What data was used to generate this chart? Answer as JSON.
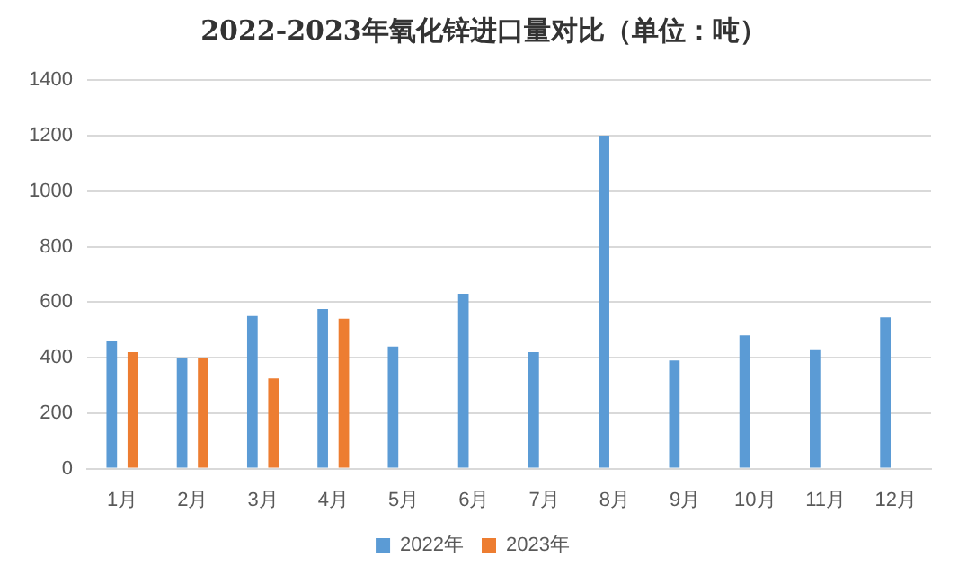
{
  "chart_data": {
    "type": "bar",
    "title": "2022-2023年氧化锌进口量对比（单位：吨）",
    "categories": [
      "1月",
      "2月",
      "3月",
      "4月",
      "5月",
      "6月",
      "7月",
      "8月",
      "9月",
      "10月",
      "11月",
      "12月"
    ],
    "series": [
      {
        "name": "2022年",
        "color": "#5b9bd5",
        "values": [
          460,
          400,
          550,
          575,
          440,
          630,
          420,
          1200,
          390,
          480,
          430,
          545
        ]
      },
      {
        "name": "2023年",
        "color": "#ed7d31",
        "values": [
          420,
          400,
          325,
          540,
          null,
          null,
          null,
          null,
          null,
          null,
          null,
          null
        ]
      }
    ],
    "ylim": [
      0,
      1400
    ],
    "yticks": [
      0,
      200,
      400,
      600,
      800,
      1000,
      1200,
      1400
    ],
    "grid": "y",
    "legend": "bottom"
  }
}
